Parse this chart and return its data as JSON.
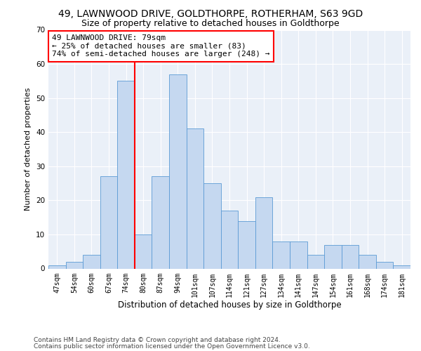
{
  "title1": "49, LAWNWOOD DRIVE, GOLDTHORPE, ROTHERHAM, S63 9GD",
  "title2": "Size of property relative to detached houses in Goldthorpe",
  "xlabel": "Distribution of detached houses by size in Goldthorpe",
  "ylabel": "Number of detached properties",
  "bin_labels": [
    "47sqm",
    "54sqm",
    "60sqm",
    "67sqm",
    "74sqm",
    "80sqm",
    "87sqm",
    "94sqm",
    "101sqm",
    "107sqm",
    "114sqm",
    "121sqm",
    "127sqm",
    "134sqm",
    "141sqm",
    "147sqm",
    "154sqm",
    "161sqm",
    "168sqm",
    "174sqm",
    "181sqm"
  ],
  "bar_values": [
    1,
    2,
    4,
    27,
    55,
    10,
    27,
    57,
    41,
    25,
    17,
    14,
    21,
    8,
    8,
    4,
    7,
    7,
    4,
    2,
    1
  ],
  "bar_color": "#c5d8f0",
  "bar_edge_color": "#5b9bd5",
  "bar_width": 1.0,
  "vline_bin": 4,
  "annotation_line1": "49 LAWNWOOD DRIVE: 79sqm",
  "annotation_line2": "← 25% of detached houses are smaller (83)",
  "annotation_line3": "74% of semi-detached houses are larger (248) →",
  "annotation_box_color": "white",
  "annotation_box_edge_color": "red",
  "vline_color": "red",
  "ylim": [
    0,
    70
  ],
  "yticks": [
    0,
    10,
    20,
    30,
    40,
    50,
    60,
    70
  ],
  "footnote1": "Contains HM Land Registry data © Crown copyright and database right 2024.",
  "footnote2": "Contains public sector information licensed under the Open Government Licence v3.0.",
  "bg_color": "#eaf0f8",
  "grid_color": "white",
  "title1_fontsize": 10,
  "title2_fontsize": 9,
  "xlabel_fontsize": 8.5,
  "ylabel_fontsize": 8,
  "tick_fontsize": 7,
  "annotation_fontsize": 8,
  "footnote_fontsize": 6.5
}
